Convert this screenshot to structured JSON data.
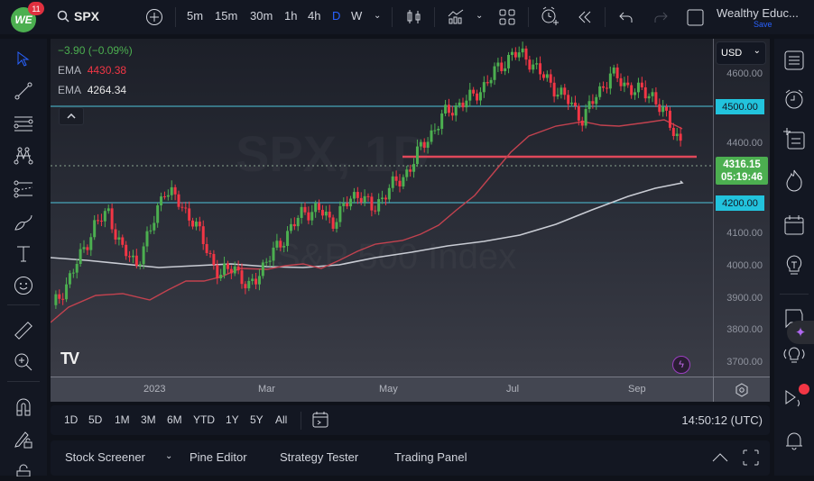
{
  "topbar": {
    "app_badge_count": "11",
    "symbol": "SPX",
    "intervals": [
      "5m",
      "15m",
      "30m",
      "1h",
      "4h",
      "D",
      "W"
    ],
    "active_interval": "D",
    "layout_name": "Wealthy Educ...",
    "save_label": "Save"
  },
  "legend": {
    "change": "−3.90 (−0.09%)",
    "ema1_label": "EMA",
    "ema1_value": "4430.38",
    "ema2_label": "EMA",
    "ema2_value": "4264.34"
  },
  "watermark": {
    "line1": "SPX, 1D",
    "line2": "S&P 500 Index"
  },
  "price_scale": {
    "currency": "USD",
    "ticks": [
      "4600.00",
      "4500.00",
      "4400.00",
      "4316.15",
      "4200.00",
      "4100.00",
      "4000.00",
      "3900.00",
      "3800.00",
      "3700.00"
    ],
    "hline_label_upper": "4500.00",
    "hline_label_lower": "4200.00",
    "last_price": "4316.15",
    "countdown": "05:19:46"
  },
  "time_scale": {
    "ticks": [
      "2023",
      "Mar",
      "May",
      "Jul",
      "Sep"
    ]
  },
  "bottom_toolbar": {
    "ranges": [
      "1D",
      "5D",
      "1M",
      "3M",
      "6M",
      "YTD",
      "1Y",
      "5Y",
      "All"
    ],
    "clock": "14:50:12 (UTC)"
  },
  "panel_tabs": [
    "Stock Screener",
    "Pine Editor",
    "Strategy Tester",
    "Trading Panel"
  ],
  "colors": {
    "up": "#4caf50",
    "down": "#f23645",
    "ema_fast": "#c2424f",
    "ema_slow": "#d1d4dc",
    "hline": "#4fc3d9",
    "resistance": "#e0485a",
    "accent": "#2962ff"
  },
  "chart_data": {
    "type": "candlestick",
    "symbol": "SPX",
    "interval": "1D",
    "x_ticks": [
      "2023",
      "Mar",
      "May",
      "Jul",
      "Sep"
    ],
    "y_range": [
      3680,
      4660
    ],
    "horizontal_lines": [
      4500,
      4200,
      4350
    ],
    "last_price": 4316.15,
    "ema_fast_last": 4430.38,
    "ema_slow_last": 4264.34,
    "approx_closes": [
      3830,
      3900,
      3980,
      4070,
      4110,
      4000,
      3960,
      4050,
      4180,
      4140,
      4090,
      4010,
      3920,
      3960,
      3880,
      3950,
      4000,
      4060,
      4110,
      4120,
      4080,
      4130,
      4170,
      4110,
      4180,
      4200,
      4270,
      4330,
      4390,
      4420,
      4440,
      4480,
      4530,
      4570,
      4560,
      4510,
      4470,
      4430,
      4380,
      4450,
      4510,
      4480,
      4460,
      4450,
      4380,
      4316
    ]
  }
}
